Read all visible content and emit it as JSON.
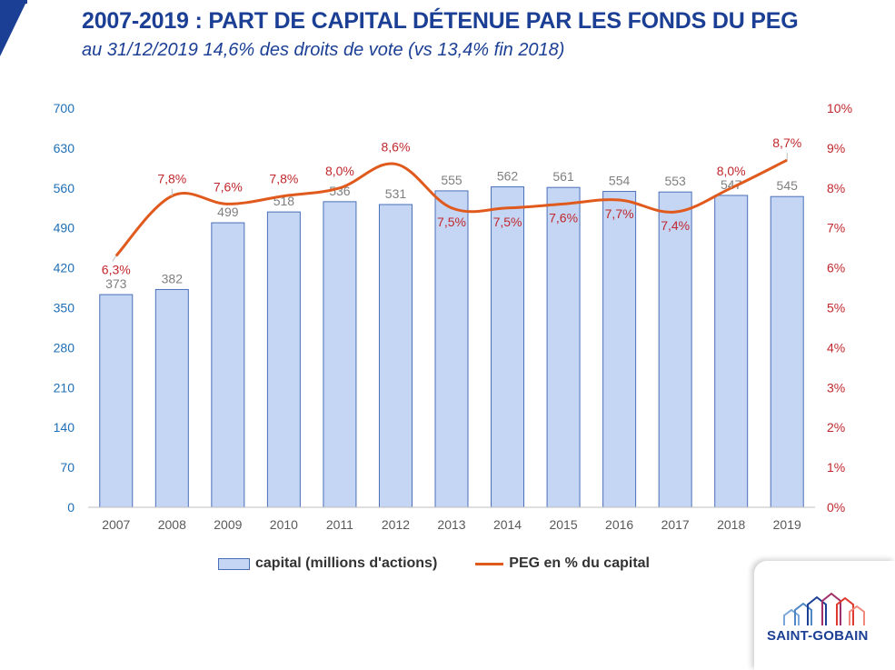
{
  "header": {
    "title": "2007-2019 : PART DE CAPITAL DÉTENUE PAR LES FONDS DU PEG",
    "subtitle": "au 31/12/2019 14,6% des droits de vote (vs 13,4% fin 2018)"
  },
  "colors": {
    "brand_blue": "#1b3f94",
    "bar_fill": "#c5d6f5",
    "bar_stroke": "#4a6fb8",
    "line": "#e05a1e",
    "left_axis_text": "#1f6fb5",
    "right_axis_text": "#c0282d",
    "bar_label_text": "#7f7f7f",
    "line_label_text": "#c0282d"
  },
  "chart_data": {
    "type": "bar",
    "categories": [
      "2007",
      "2008",
      "2009",
      "2010",
      "2011",
      "2012",
      "2013",
      "2014",
      "2015",
      "2016",
      "2017",
      "2018",
      "2019"
    ],
    "series": [
      {
        "name": "capital (millions d'actions)",
        "type": "bar",
        "axis": "left",
        "values": [
          373,
          382,
          499,
          518,
          536,
          531,
          555,
          562,
          561,
          554,
          553,
          547,
          545
        ],
        "labels": [
          "373",
          "382",
          "499",
          "518",
          "536",
          "531",
          "555",
          "562",
          "561",
          "554",
          "553",
          "547",
          "545"
        ]
      },
      {
        "name": "PEG en % du capital",
        "type": "line",
        "axis": "right",
        "values": [
          6.3,
          7.8,
          7.6,
          7.8,
          8.0,
          8.6,
          7.5,
          7.5,
          7.6,
          7.7,
          7.4,
          8.0,
          8.7
        ],
        "labels": [
          "6,3%",
          "7,8%",
          "7,6%",
          "7,8%",
          "8,0%",
          "8,6%",
          "7,5%",
          "7,5%",
          "7,6%",
          "7,7%",
          "7,4%",
          "8,0%",
          "8,7%"
        ]
      }
    ],
    "y_left": {
      "min": 0,
      "max": 700,
      "ticks": [
        "0",
        "70",
        "140",
        "210",
        "280",
        "350",
        "420",
        "490",
        "560",
        "630",
        "700"
      ]
    },
    "y_right": {
      "min": 0,
      "max": 10,
      "ticks": [
        "0%",
        "1%",
        "2%",
        "3%",
        "4%",
        "5%",
        "6%",
        "7%",
        "8%",
        "9%",
        "10%"
      ]
    },
    "grid": false,
    "legend_position": "bottom"
  },
  "logo": {
    "text": "SAINT-GOBAIN"
  }
}
